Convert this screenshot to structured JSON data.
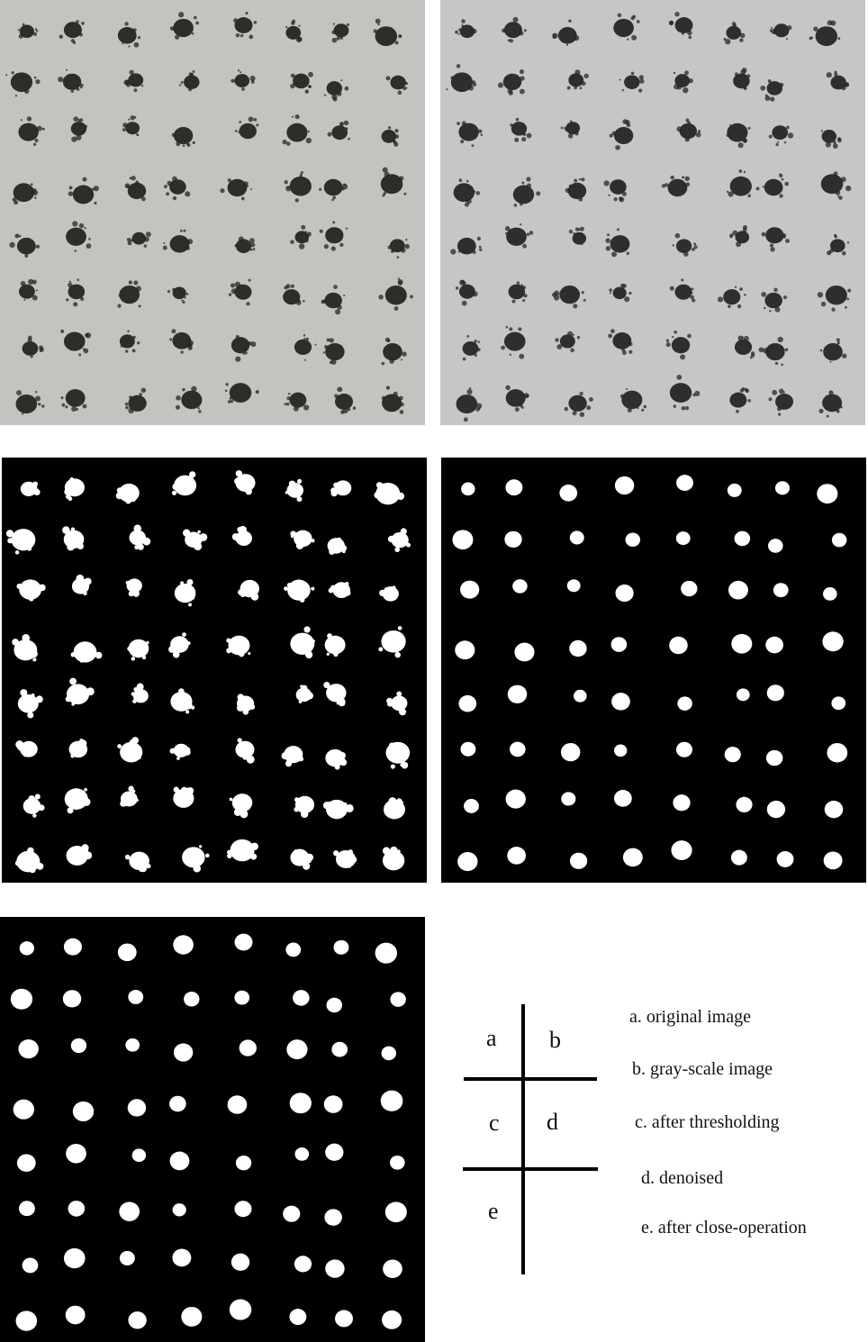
{
  "panels": [
    {
      "id": "a",
      "style": "original",
      "background": "#c4c3c0",
      "dot_color": "#232621"
    },
    {
      "id": "b",
      "style": "grayscale",
      "background": "#c6c6c6",
      "dot_color": "#262626"
    },
    {
      "id": "c",
      "style": "threshold",
      "background": "#000000",
      "dot_color": "#ffffff"
    },
    {
      "id": "d",
      "style": "denoised",
      "background": "#000000",
      "dot_color": "#ffffff"
    },
    {
      "id": "e",
      "style": "closed",
      "background": "#000000",
      "dot_color": "#ffffff"
    }
  ],
  "key": {
    "letters": [
      "a",
      "b",
      "c",
      "d",
      "e"
    ]
  },
  "captions": [
    "a. original image",
    "b. gray-scale image",
    "c. after thresholding",
    "d. denoised",
    "e. after close-operation"
  ]
}
